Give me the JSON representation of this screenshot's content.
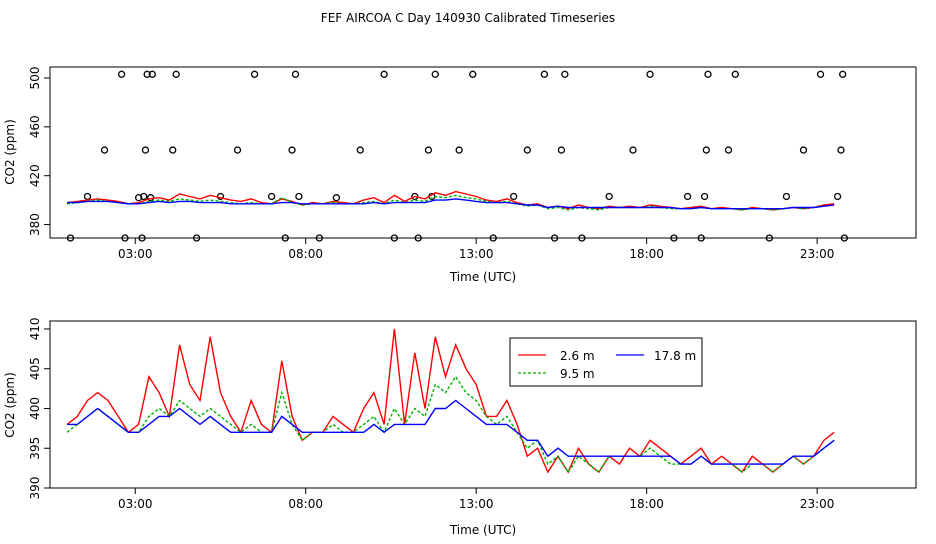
{
  "figure": {
    "title": "FEF AIRCOA C  Day 140930  Calibrated Timeseries"
  },
  "colors": {
    "s26": "#ff0000",
    "s95": "#00b000",
    "s178": "#0000ff",
    "axis": "#000000",
    "points": "#000000"
  },
  "chart_data": [
    {
      "type": "scatter",
      "xlabel": "Time (UTC)",
      "ylabel": "CO2 (ppm)",
      "xlim": [
        0.5,
        25.9
      ],
      "ylim": [
        369,
        509
      ],
      "x_ticks": [
        3,
        8,
        13,
        18,
        23
      ],
      "x_tick_labels": [
        "03:00",
        "08:00",
        "13:00",
        "18:00",
        "23:00"
      ],
      "y_ticks": [
        380,
        420,
        460,
        500
      ],
      "y_tick_labels": [
        "380",
        "420",
        "460",
        "500"
      ],
      "points_x": [
        1.1,
        1.6,
        2.1,
        2.6,
        2.7,
        3.1,
        3.2,
        3.25,
        3.3,
        3.35,
        3.45,
        3.5,
        4.1,
        4.2,
        4.8,
        5.5,
        6.0,
        6.5,
        7.0,
        7.4,
        7.6,
        7.7,
        7.8,
        8.4,
        8.9,
        9.6,
        10.3,
        10.6,
        11.2,
        11.3,
        11.6,
        11.7,
        11.8,
        12.5,
        12.9,
        13.5,
        14.1,
        14.5,
        15.0,
        15.3,
        15.5,
        15.6,
        16.1,
        16.9,
        17.6,
        18.1,
        18.8,
        19.2,
        19.6,
        19.7,
        19.75,
        19.8,
        20.4,
        20.6,
        21.6,
        22.1,
        22.6,
        23.1,
        23.6,
        23.7,
        23.75,
        23.8
      ],
      "points_y": [
        369,
        403,
        441,
        503,
        369,
        402,
        369,
        403,
        441,
        503,
        402,
        503,
        441,
        503,
        369,
        403,
        441,
        503,
        403,
        369,
        441,
        503,
        403,
        369,
        402,
        441,
        503,
        369,
        403,
        369,
        441,
        403,
        503,
        441,
        503,
        369,
        403,
        441,
        503,
        369,
        441,
        503,
        369,
        403,
        441,
        503,
        369,
        403,
        369,
        403,
        441,
        503,
        441,
        503,
        369,
        403,
        441,
        503,
        403,
        441,
        503,
        369
      ],
      "series": [
        {
          "name": "2.6 m",
          "color_key": "s26",
          "x": [
            1.0,
            1.3,
            1.6,
            1.9,
            2.2,
            2.5,
            2.8,
            3.1,
            3.4,
            3.7,
            4.0,
            4.3,
            4.6,
            4.9,
            5.2,
            5.5,
            5.8,
            6.1,
            6.4,
            6.7,
            7.0,
            7.3,
            7.6,
            7.9,
            8.2,
            8.5,
            8.8,
            9.1,
            9.4,
            9.7,
            10.0,
            10.3,
            10.6,
            10.9,
            11.2,
            11.5,
            11.8,
            12.1,
            12.4,
            12.7,
            13.0,
            13.3,
            13.6,
            13.9,
            14.2,
            14.5,
            14.8,
            15.1,
            15.4,
            15.7,
            16.0,
            16.3,
            16.6,
            16.9,
            17.2,
            17.5,
            17.8,
            18.1,
            18.4,
            18.7,
            19.0,
            19.3,
            19.6,
            19.9,
            20.2,
            20.5,
            20.8,
            21.1,
            21.4,
            21.7,
            22.0,
            22.3,
            22.6,
            22.9,
            23.2,
            23.5
          ],
          "y": [
            398,
            399,
            400,
            401,
            400,
            399,
            397,
            398,
            401,
            402,
            400,
            405,
            403,
            401,
            404,
            402,
            400,
            399,
            401,
            398,
            397,
            401,
            399,
            396,
            398,
            397,
            399,
            398,
            397,
            400,
            402,
            398,
            404,
            399,
            403,
            401,
            406,
            404,
            407,
            405,
            403,
            400,
            399,
            401,
            398,
            396,
            397,
            394,
            395,
            393,
            396,
            394,
            393,
            395,
            394,
            395,
            394,
            396,
            395,
            394,
            393,
            394,
            395,
            393,
            394,
            393,
            392,
            394,
            393,
            392,
            393,
            394,
            393,
            394,
            396,
            397
          ]
        },
        {
          "name": "9.5 m",
          "color_key": "s95",
          "x": [
            1.0,
            1.3,
            1.6,
            1.9,
            2.2,
            2.5,
            2.8,
            3.1,
            3.4,
            3.7,
            4.0,
            4.3,
            4.6,
            4.9,
            5.2,
            5.5,
            5.8,
            6.1,
            6.4,
            6.7,
            7.0,
            7.3,
            7.6,
            7.9,
            8.2,
            8.5,
            8.8,
            9.1,
            9.4,
            9.7,
            10.0,
            10.3,
            10.6,
            10.9,
            11.2,
            11.5,
            11.8,
            12.1,
            12.4,
            12.7,
            13.0,
            13.3,
            13.6,
            13.9,
            14.2,
            14.5,
            14.8,
            15.1,
            15.4,
            15.7,
            16.0,
            16.3,
            16.6,
            16.9,
            17.2,
            17.5,
            17.8,
            18.1,
            18.4,
            18.7,
            19.0,
            19.3,
            19.6,
            19.9,
            20.2,
            20.5,
            20.8,
            21.1,
            21.4,
            21.7,
            22.0,
            22.3,
            22.6,
            22.9,
            23.2,
            23.5
          ],
          "y": [
            397,
            398,
            399,
            400,
            399,
            398,
            397,
            397,
            399,
            400,
            399,
            401,
            400,
            399,
            400,
            399,
            398,
            397,
            398,
            397,
            397,
            402,
            398,
            396,
            397,
            397,
            398,
            397,
            397,
            398,
            399,
            397,
            400,
            398,
            400,
            399,
            403,
            402,
            404,
            402,
            401,
            399,
            398,
            399,
            397,
            395,
            396,
            393,
            394,
            392,
            394,
            393,
            392,
            394,
            394,
            394,
            394,
            395,
            394,
            393,
            393,
            393,
            394,
            393,
            393,
            393,
            392,
            393,
            393,
            392,
            393,
            394,
            393,
            394,
            395,
            396
          ]
        },
        {
          "name": "17.8 m",
          "color_key": "s178",
          "x": [
            1.0,
            1.3,
            1.6,
            1.9,
            2.2,
            2.5,
            2.8,
            3.1,
            3.4,
            3.7,
            4.0,
            4.3,
            4.6,
            4.9,
            5.2,
            5.5,
            5.8,
            6.1,
            6.4,
            6.7,
            7.0,
            7.3,
            7.6,
            7.9,
            8.2,
            8.5,
            8.8,
            9.1,
            9.4,
            9.7,
            10.0,
            10.3,
            10.6,
            10.9,
            11.2,
            11.5,
            11.8,
            12.1,
            12.4,
            12.7,
            13.0,
            13.3,
            13.6,
            13.9,
            14.2,
            14.5,
            14.8,
            15.1,
            15.4,
            15.7,
            16.0,
            16.3,
            16.6,
            16.9,
            17.2,
            17.5,
            17.8,
            18.1,
            18.4,
            18.7,
            19.0,
            19.3,
            19.6,
            19.9,
            20.2,
            20.5,
            20.8,
            21.1,
            21.4,
            21.7,
            22.0,
            22.3,
            22.6,
            22.9,
            23.2,
            23.5
          ],
          "y": [
            398,
            398,
            399,
            399,
            399,
            398,
            397,
            397,
            398,
            399,
            398,
            399,
            399,
            398,
            398,
            398,
            397,
            397,
            397,
            397,
            397,
            398,
            398,
            397,
            397,
            397,
            397,
            397,
            397,
            397,
            398,
            397,
            398,
            398,
            398,
            398,
            400,
            400,
            401,
            400,
            399,
            398,
            398,
            398,
            397,
            396,
            396,
            394,
            395,
            394,
            394,
            394,
            394,
            394,
            394,
            394,
            394,
            394,
            394,
            394,
            393,
            393,
            394,
            393,
            393,
            393,
            393,
            393,
            393,
            393,
            393,
            394,
            394,
            394,
            395,
            396
          ]
        }
      ]
    },
    {
      "type": "line",
      "xlabel": "Time (UTC)",
      "ylabel": "CO2 (ppm)",
      "xlim": [
        0.5,
        25.9
      ],
      "ylim": [
        390,
        411
      ],
      "x_ticks": [
        3,
        8,
        13,
        18,
        23
      ],
      "x_tick_labels": [
        "03:00",
        "08:00",
        "13:00",
        "18:00",
        "23:00"
      ],
      "y_ticks": [
        390,
        395,
        400,
        405,
        410
      ],
      "y_tick_labels": [
        "390",
        "395",
        "400",
        "405",
        "410"
      ],
      "legend": {
        "position": "top-center",
        "entries": [
          "2.6 m",
          "9.5 m",
          "17.8 m"
        ]
      },
      "series": [
        {
          "name": "2.6 m",
          "color_key": "s26",
          "x": [
            1.0,
            1.3,
            1.6,
            1.9,
            2.2,
            2.5,
            2.8,
            3.1,
            3.4,
            3.7,
            4.0,
            4.3,
            4.6,
            4.9,
            5.2,
            5.5,
            5.8,
            6.1,
            6.4,
            6.7,
            7.0,
            7.3,
            7.6,
            7.9,
            8.2,
            8.5,
            8.8,
            9.1,
            9.4,
            9.7,
            10.0,
            10.3,
            10.6,
            10.9,
            11.2,
            11.5,
            11.8,
            12.1,
            12.4,
            12.7,
            13.0,
            13.3,
            13.6,
            13.9,
            14.2,
            14.5,
            14.8,
            15.1,
            15.4,
            15.7,
            16.0,
            16.3,
            16.6,
            16.9,
            17.2,
            17.5,
            17.8,
            18.1,
            18.4,
            18.7,
            19.0,
            19.3,
            19.6,
            19.9,
            20.2,
            20.5,
            20.8,
            21.1,
            21.4,
            21.7,
            22.0,
            22.3,
            22.6,
            22.9,
            23.2,
            23.5
          ],
          "y": [
            398,
            399,
            401,
            402,
            401,
            399,
            397,
            398,
            404,
            402,
            399,
            408,
            403,
            401,
            409,
            402,
            399,
            397,
            401,
            398,
            397,
            406,
            399,
            396,
            397,
            397,
            399,
            398,
            397,
            400,
            402,
            398,
            410,
            398,
            407,
            400,
            409,
            404,
            408,
            405,
            403,
            399,
            399,
            401,
            398,
            394,
            395,
            392,
            394,
            392,
            395,
            393,
            392,
            394,
            393,
            395,
            394,
            396,
            395,
            394,
            393,
            394,
            395,
            393,
            394,
            393,
            392,
            394,
            393,
            392,
            393,
            394,
            393,
            394,
            396,
            397
          ]
        },
        {
          "name": "9.5 m",
          "color_key": "s95",
          "x": [
            1.0,
            1.3,
            1.6,
            1.9,
            2.2,
            2.5,
            2.8,
            3.1,
            3.4,
            3.7,
            4.0,
            4.3,
            4.6,
            4.9,
            5.2,
            5.5,
            5.8,
            6.1,
            6.4,
            6.7,
            7.0,
            7.3,
            7.6,
            7.9,
            8.2,
            8.5,
            8.8,
            9.1,
            9.4,
            9.7,
            10.0,
            10.3,
            10.6,
            10.9,
            11.2,
            11.5,
            11.8,
            12.1,
            12.4,
            12.7,
            13.0,
            13.3,
            13.6,
            13.9,
            14.2,
            14.5,
            14.8,
            15.1,
            15.4,
            15.7,
            16.0,
            16.3,
            16.6,
            16.9,
            17.2,
            17.5,
            17.8,
            18.1,
            18.4,
            18.7,
            19.0,
            19.3,
            19.6,
            19.9,
            20.2,
            20.5,
            20.8,
            21.1,
            21.4,
            21.7,
            22.0,
            22.3,
            22.6,
            22.9,
            23.2,
            23.5
          ],
          "y": [
            397,
            398,
            399,
            400,
            399,
            398,
            397,
            397,
            399,
            400,
            399,
            401,
            400,
            399,
            400,
            399,
            398,
            397,
            398,
            397,
            397,
            402,
            398,
            396,
            397,
            397,
            398,
            397,
            397,
            398,
            399,
            397,
            400,
            398,
            400,
            399,
            403,
            402,
            404,
            402,
            401,
            399,
            398,
            399,
            397,
            395,
            396,
            393,
            394,
            392,
            394,
            393,
            392,
            394,
            394,
            394,
            394,
            395,
            394,
            393,
            393,
            393,
            394,
            393,
            393,
            393,
            392,
            393,
            393,
            392,
            393,
            394,
            393,
            394,
            395,
            396
          ]
        },
        {
          "name": "17.8 m",
          "color_key": "s178",
          "x": [
            1.0,
            1.3,
            1.6,
            1.9,
            2.2,
            2.5,
            2.8,
            3.1,
            3.4,
            3.7,
            4.0,
            4.3,
            4.6,
            4.9,
            5.2,
            5.5,
            5.8,
            6.1,
            6.4,
            6.7,
            7.0,
            7.3,
            7.6,
            7.9,
            8.2,
            8.5,
            8.8,
            9.1,
            9.4,
            9.7,
            10.0,
            10.3,
            10.6,
            10.9,
            11.2,
            11.5,
            11.8,
            12.1,
            12.4,
            12.7,
            13.0,
            13.3,
            13.6,
            13.9,
            14.2,
            14.5,
            14.8,
            15.1,
            15.4,
            15.7,
            16.0,
            16.3,
            16.6,
            16.9,
            17.2,
            17.5,
            17.8,
            18.1,
            18.4,
            18.7,
            19.0,
            19.3,
            19.6,
            19.9,
            20.2,
            20.5,
            20.8,
            21.1,
            21.4,
            21.7,
            22.0,
            22.3,
            22.6,
            22.9,
            23.2,
            23.5
          ],
          "y": [
            398,
            398,
            399,
            400,
            399,
            398,
            397,
            397,
            398,
            399,
            399,
            400,
            399,
            398,
            399,
            398,
            397,
            397,
            397,
            397,
            397,
            399,
            398,
            397,
            397,
            397,
            397,
            397,
            397,
            397,
            398,
            397,
            398,
            398,
            398,
            398,
            400,
            400,
            401,
            400,
            399,
            398,
            398,
            398,
            397,
            396,
            396,
            394,
            395,
            394,
            394,
            394,
            394,
            394,
            394,
            394,
            394,
            394,
            394,
            394,
            393,
            393,
            394,
            393,
            393,
            393,
            393,
            393,
            393,
            393,
            393,
            394,
            394,
            394,
            395,
            396
          ]
        }
      ]
    }
  ]
}
